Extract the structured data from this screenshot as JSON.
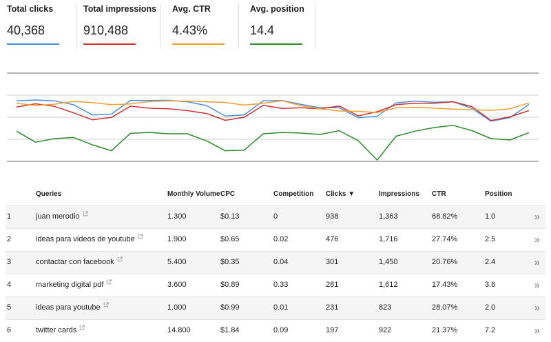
{
  "metrics": [
    {
      "label": "Total clicks",
      "value": "40,368",
      "color": "#4a90d9"
    },
    {
      "label": "Total impressions",
      "value": "910,488",
      "color": "#d32f2f"
    },
    {
      "label": "Avg. CTR",
      "value": "4.43%",
      "color": "#f0a030"
    },
    {
      "label": "Avg. position",
      "value": "14.4",
      "color": "#2e8b2e"
    }
  ],
  "chart_data": {
    "type": "line",
    "x_count": 28,
    "series": [
      {
        "name": "Total clicks",
        "color": "#4a90d9",
        "values": [
          0.74,
          0.78,
          0.74,
          0.57,
          0.1,
          0.14,
          0.76,
          0.76,
          0.77,
          0.7,
          0.53,
          0.05,
          0.11,
          0.74,
          0.76,
          0.58,
          0.43,
          0.43,
          -0.02,
          0.04,
          0.65,
          0.73,
          0.68,
          0.7,
          0.4,
          -0.18,
          -0.02,
          0.58
        ]
      },
      {
        "name": "Total impressions",
        "color": "#d32f2f",
        "values": [
          0.46,
          0.61,
          0.49,
          0.2,
          -0.12,
          -0.01,
          0.5,
          0.41,
          0.38,
          0.3,
          0.17,
          -0.14,
          0.0,
          0.54,
          0.4,
          0.43,
          0.38,
          0.51,
          0.06,
          0.25,
          0.57,
          0.63,
          0.63,
          0.7,
          0.48,
          -0.15,
          0.02,
          0.3
        ]
      },
      {
        "name": "Avg. CTR",
        "color": "#f0a030",
        "values": [
          0.63,
          0.53,
          0.59,
          0.72,
          0.66,
          0.57,
          0.6,
          0.71,
          0.74,
          0.73,
          0.7,
          0.67,
          0.55,
          0.63,
          0.75,
          0.52,
          0.38,
          0.28,
          0.27,
          0.21,
          0.43,
          0.45,
          0.41,
          0.37,
          0.34,
          0.31,
          0.38,
          0.65
        ]
      },
      {
        "name": "Avg. position",
        "color": "#2e8b2e",
        "values": [
          -0.63,
          -1.13,
          -0.97,
          -0.92,
          -1.25,
          -1.52,
          -0.73,
          -0.69,
          -0.75,
          -0.75,
          -1.07,
          -1.52,
          -1.49,
          -0.75,
          -0.69,
          -0.72,
          -0.78,
          -0.61,
          -1.06,
          -1.94,
          -0.86,
          -0.63,
          -0.47,
          -0.37,
          -0.61,
          -0.97,
          -1.03,
          -0.7
        ]
      }
    ],
    "grid": true
  },
  "table": {
    "headers": {
      "queries": "Queries",
      "volume": "Monthly Volume",
      "cpc": "CPC",
      "competition": "Competition",
      "clicks": "Clicks ▼",
      "impressions": "Impressions",
      "ctr": "CTR",
      "position": "Position"
    },
    "rows": [
      {
        "n": "1",
        "q": "juan merodio",
        "vol": "1.300",
        "cpc": "$0.13",
        "comp": "0",
        "clicks": "938",
        "imp": "1,363",
        "ctr": "68.82%",
        "pos": "1.0",
        "action": "»"
      },
      {
        "n": "2",
        "q": "ideas para videos de youtube",
        "vol": "1.900",
        "cpc": "$0.65",
        "comp": "0.02",
        "clicks": "476",
        "imp": "1,716",
        "ctr": "27.74%",
        "pos": "2.5",
        "action": "»"
      },
      {
        "n": "3",
        "q": "contactar con facebook",
        "vol": "5.400",
        "cpc": "$0.35",
        "comp": "0.04",
        "clicks": "301",
        "imp": "1,450",
        "ctr": "20.76%",
        "pos": "2.4",
        "action": "»"
      },
      {
        "n": "4",
        "q": "marketing digital pdf",
        "vol": "3.600",
        "cpc": "$0.89",
        "comp": "0.33",
        "clicks": "281",
        "imp": "1,612",
        "ctr": "17.43%",
        "pos": "3.6",
        "action": "»"
      },
      {
        "n": "5",
        "q": "ideas para youtube",
        "vol": "1.000",
        "cpc": "$0.99",
        "comp": "0.01",
        "clicks": "231",
        "imp": "823",
        "ctr": "28.07%",
        "pos": "2.0",
        "action": "»"
      },
      {
        "n": "6",
        "q": "twitter cards",
        "vol": "14.800",
        "cpc": "$1.84",
        "comp": "0.09",
        "clicks": "197",
        "imp": "922",
        "ctr": "21.37%",
        "pos": "7.2",
        "action": "»"
      }
    ]
  }
}
